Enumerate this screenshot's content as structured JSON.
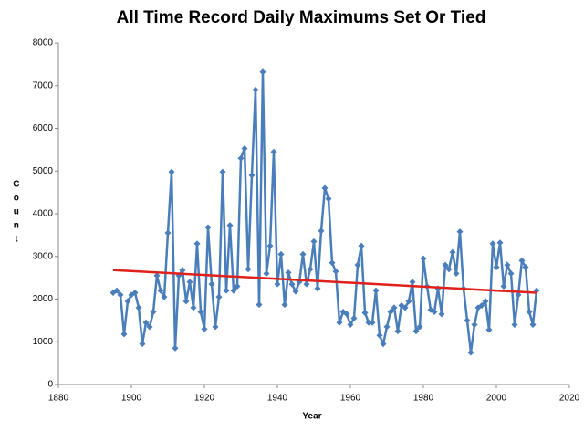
{
  "chart_data": {
    "type": "line",
    "title": "All Time Record Daily Maximums Set Or Tied",
    "x_label": "Year",
    "y_label": "Count",
    "x": [
      1895,
      1896,
      1897,
      1898,
      1899,
      1900,
      1901,
      1902,
      1903,
      1904,
      1905,
      1906,
      1907,
      1908,
      1909,
      1910,
      1911,
      1912,
      1913,
      1914,
      1915,
      1916,
      1917,
      1918,
      1919,
      1920,
      1921,
      1922,
      1923,
      1924,
      1925,
      1926,
      1927,
      1928,
      1929,
      1930,
      1931,
      1932,
      1933,
      1934,
      1935,
      1936,
      1937,
      1938,
      1939,
      1940,
      1941,
      1942,
      1943,
      1944,
      1945,
      1946,
      1947,
      1948,
      1949,
      1950,
      1951,
      1952,
      1953,
      1954,
      1955,
      1956,
      1957,
      1958,
      1959,
      1960,
      1961,
      1962,
      1963,
      1964,
      1965,
      1966,
      1967,
      1968,
      1969,
      1970,
      1971,
      1972,
      1973,
      1974,
      1975,
      1976,
      1977,
      1978,
      1979,
      1980,
      1981,
      1982,
      1983,
      1984,
      1985,
      1986,
      1987,
      1988,
      1989,
      1990,
      1991,
      1992,
      1993,
      1994,
      1995,
      1996,
      1997,
      1998,
      1999,
      2000,
      2001,
      2002,
      2003,
      2004,
      2005,
      2006,
      2007,
      2008,
      2009,
      2010,
      2011
    ],
    "series": [
      {
        "color": "#4a7ebb",
        "values": [
          2150,
          2200,
          2100,
          1180,
          1950,
          2100,
          2150,
          1800,
          950,
          1450,
          1350,
          1700,
          2550,
          2200,
          2050,
          3550,
          4980,
          850,
          2550,
          2680,
          1950,
          2400,
          1800,
          3300,
          1700,
          1300,
          3680,
          2350,
          1350,
          2050,
          4980,
          2200,
          3730,
          2200,
          2300,
          5300,
          5530,
          2700,
          4900,
          6900,
          1870,
          7320,
          2600,
          3250,
          5450,
          2350,
          3050,
          1870,
          2620,
          2350,
          2180,
          2400,
          3050,
          2350,
          2700,
          3350,
          2250,
          3600,
          4600,
          4350,
          2850,
          2650,
          1450,
          1700,
          1650,
          1400,
          1550,
          2800,
          3250,
          1680,
          1450,
          1450,
          2200,
          1150,
          950,
          1350,
          1700,
          1800,
          1250,
          1850,
          1800,
          1950,
          2400,
          1250,
          1350,
          2950,
          2300,
          1750,
          1700,
          2250,
          1650,
          2800,
          2700,
          3100,
          2600,
          3580,
          2250,
          1500,
          750,
          1400,
          1800,
          1850,
          1950,
          1280,
          3300,
          2750,
          3320,
          2300,
          2800,
          2600,
          1400,
          2100,
          2900,
          2750,
          1700,
          1400,
          2200
        ]
      }
    ],
    "trendline": {
      "color": "#e0201b",
      "x": [
        1895,
        2011
      ],
      "values": [
        2680,
        2150
      ]
    },
    "xlim": [
      1880,
      2020
    ],
    "xticks": [
      1880,
      1900,
      1920,
      1940,
      1960,
      1980,
      2000,
      2020
    ],
    "ylim": [
      0,
      8000
    ],
    "yticks": [
      0,
      1000,
      2000,
      3000,
      4000,
      5000,
      6000,
      7000,
      8000
    ]
  }
}
